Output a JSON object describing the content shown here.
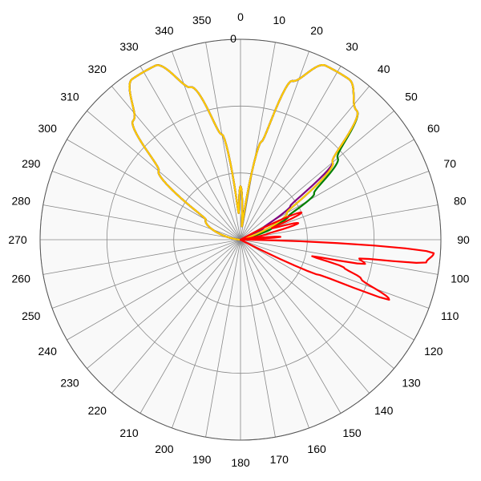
{
  "chart_data": {
    "type": "polar",
    "angle_ticks": [
      "0",
      "10",
      "20",
      "30",
      "40",
      "50",
      "60",
      "70",
      "80",
      "90",
      "100",
      "110",
      "120",
      "130",
      "140",
      "150",
      "160",
      "170",
      "180",
      "190",
      "200",
      "210",
      "220",
      "230",
      "240",
      "250",
      "260",
      "270",
      "280",
      "290",
      "300",
      "310",
      "320",
      "330",
      "340",
      "350"
    ],
    "radial_tick_labels": [
      "0"
    ],
    "radial_range": [
      -30,
      0
    ],
    "ring_values": [
      -30,
      -20,
      -10,
      0
    ],
    "grid": true,
    "background": "#ffffff",
    "plot_fill": "#f9f9f9",
    "grid_color": "#888888",
    "series": [
      {
        "color": "#7f7f7f",
        "points": [
          [
            0,
            -22
          ],
          [
            6,
            -28
          ],
          [
            12,
            -15
          ],
          [
            18,
            -5
          ],
          [
            26,
            -1
          ],
          [
            34,
            -1
          ],
          [
            42,
            -4
          ],
          [
            50,
            -12
          ],
          [
            60,
            -22
          ],
          [
            75,
            -29
          ],
          [
            90,
            -30
          ],
          [
            270,
            -30
          ],
          [
            300,
            -24
          ],
          [
            310,
            -14
          ],
          [
            318,
            -6
          ],
          [
            326,
            -1
          ],
          [
            334,
            -1
          ],
          [
            342,
            -6
          ],
          [
            350,
            -14
          ],
          [
            356,
            -26
          ],
          [
            360,
            -22
          ]
        ]
      },
      {
        "color": "#008000",
        "points": [
          [
            0,
            -22
          ],
          [
            6,
            -28
          ],
          [
            12,
            -15
          ],
          [
            18,
            -5
          ],
          [
            26,
            -1
          ],
          [
            34,
            -1
          ],
          [
            42,
            -4
          ],
          [
            50,
            -11
          ],
          [
            58,
            -17
          ],
          [
            64,
            -22
          ],
          [
            70,
            -25
          ],
          [
            78,
            -30
          ],
          [
            90,
            -30
          ],
          [
            270,
            -30
          ],
          [
            300,
            -24
          ],
          [
            310,
            -14
          ],
          [
            318,
            -6
          ],
          [
            326,
            -1
          ],
          [
            334,
            -1
          ],
          [
            342,
            -6
          ],
          [
            350,
            -14
          ],
          [
            356,
            -26
          ],
          [
            360,
            -22
          ]
        ]
      },
      {
        "color": "#0000cc",
        "points": [
          [
            0,
            -22
          ],
          [
            6,
            -28
          ],
          [
            12,
            -15
          ],
          [
            18,
            -5
          ],
          [
            26,
            -1
          ],
          [
            34,
            -1
          ],
          [
            42,
            -4
          ],
          [
            50,
            -12
          ],
          [
            60,
            -22
          ],
          [
            75,
            -29
          ],
          [
            90,
            -30
          ],
          [
            270,
            -30
          ],
          [
            300,
            -24
          ],
          [
            310,
            -14
          ],
          [
            318,
            -6
          ],
          [
            326,
            -1
          ],
          [
            334,
            -1
          ],
          [
            342,
            -6
          ],
          [
            350,
            -14
          ],
          [
            356,
            -26
          ],
          [
            360,
            -22
          ]
        ]
      },
      {
        "color": "#800080",
        "points": [
          [
            0,
            -22
          ],
          [
            6,
            -28
          ],
          [
            12,
            -15
          ],
          [
            18,
            -5
          ],
          [
            26,
            -1
          ],
          [
            34,
            -1
          ],
          [
            42,
            -4
          ],
          [
            50,
            -12
          ],
          [
            56,
            -21
          ],
          [
            62,
            -26
          ],
          [
            72,
            -29
          ],
          [
            90,
            -30
          ],
          [
            270,
            -30
          ],
          [
            300,
            -24
          ],
          [
            310,
            -14
          ],
          [
            318,
            -6
          ],
          [
            326,
            -1
          ],
          [
            334,
            -1
          ],
          [
            342,
            -6
          ],
          [
            350,
            -14
          ],
          [
            356,
            -26
          ],
          [
            360,
            -22
          ]
        ]
      },
      {
        "color": "#ffcc00",
        "points": [
          [
            0,
            -22
          ],
          [
            6,
            -28
          ],
          [
            12,
            -15
          ],
          [
            18,
            -5
          ],
          [
            26,
            -1
          ],
          [
            34,
            -1
          ],
          [
            42,
            -4
          ],
          [
            50,
            -12
          ],
          [
            60,
            -22
          ],
          [
            75,
            -29
          ],
          [
            90,
            -30
          ],
          [
            270,
            -30
          ],
          [
            300,
            -24
          ],
          [
            310,
            -14
          ],
          [
            318,
            -6
          ],
          [
            326,
            -1
          ],
          [
            334,
            -1
          ],
          [
            342,
            -6
          ],
          [
            350,
            -14
          ],
          [
            356,
            -26
          ],
          [
            360,
            -22
          ]
        ]
      },
      {
        "color": "#ff0000",
        "points": [
          [
            0,
            -30
          ],
          [
            60,
            -30
          ],
          [
            66,
            -20
          ],
          [
            70,
            -25
          ],
          [
            74,
            -21
          ],
          [
            78,
            -26
          ],
          [
            82,
            -30
          ],
          [
            86,
            -24
          ],
          [
            88,
            -30
          ],
          [
            90,
            -30
          ],
          [
            94,
            -1
          ],
          [
            97,
            -2
          ],
          [
            99,
            -12
          ],
          [
            101,
            -11
          ],
          [
            103,
            -19
          ],
          [
            105,
            -14
          ],
          [
            108,
            -11
          ],
          [
            112,
            -6
          ],
          [
            114,
            -17
          ],
          [
            118,
            -30
          ],
          [
            300,
            -30
          ],
          [
            360,
            -30
          ]
        ]
      }
    ]
  }
}
